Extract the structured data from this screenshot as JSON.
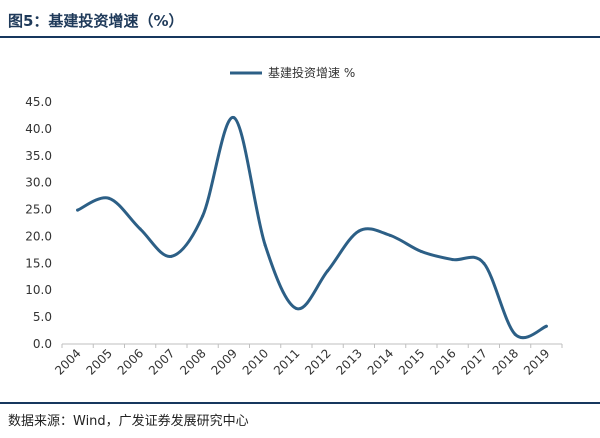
{
  "figure": {
    "title": "图5：基建投资增速（%）",
    "source": "数据来源：Wind，广发证券发展研究中心"
  },
  "chart_data": {
    "type": "line",
    "x": [
      "2004",
      "2005",
      "2006",
      "2007",
      "2008",
      "2009",
      "2010",
      "2011",
      "2012",
      "2013",
      "2014",
      "2015",
      "2016",
      "2017",
      "2018",
      "2019"
    ],
    "series": [
      {
        "name": "基建投资增速 %",
        "color": "#2c5f86",
        "values": [
          24.9,
          27.1,
          21.4,
          16.3,
          23.8,
          42.1,
          18.4,
          6.6,
          13.6,
          21.0,
          20.2,
          17.2,
          15.7,
          15.0,
          1.8,
          3.3
        ]
      }
    ],
    "y_ticks": [
      "0.0",
      "5.0",
      "10.0",
      "15.0",
      "20.0",
      "25.0",
      "30.0",
      "35.0",
      "40.0",
      "45.0"
    ],
    "ylim": [
      0,
      45
    ],
    "grid": false,
    "legend_position": "top"
  }
}
